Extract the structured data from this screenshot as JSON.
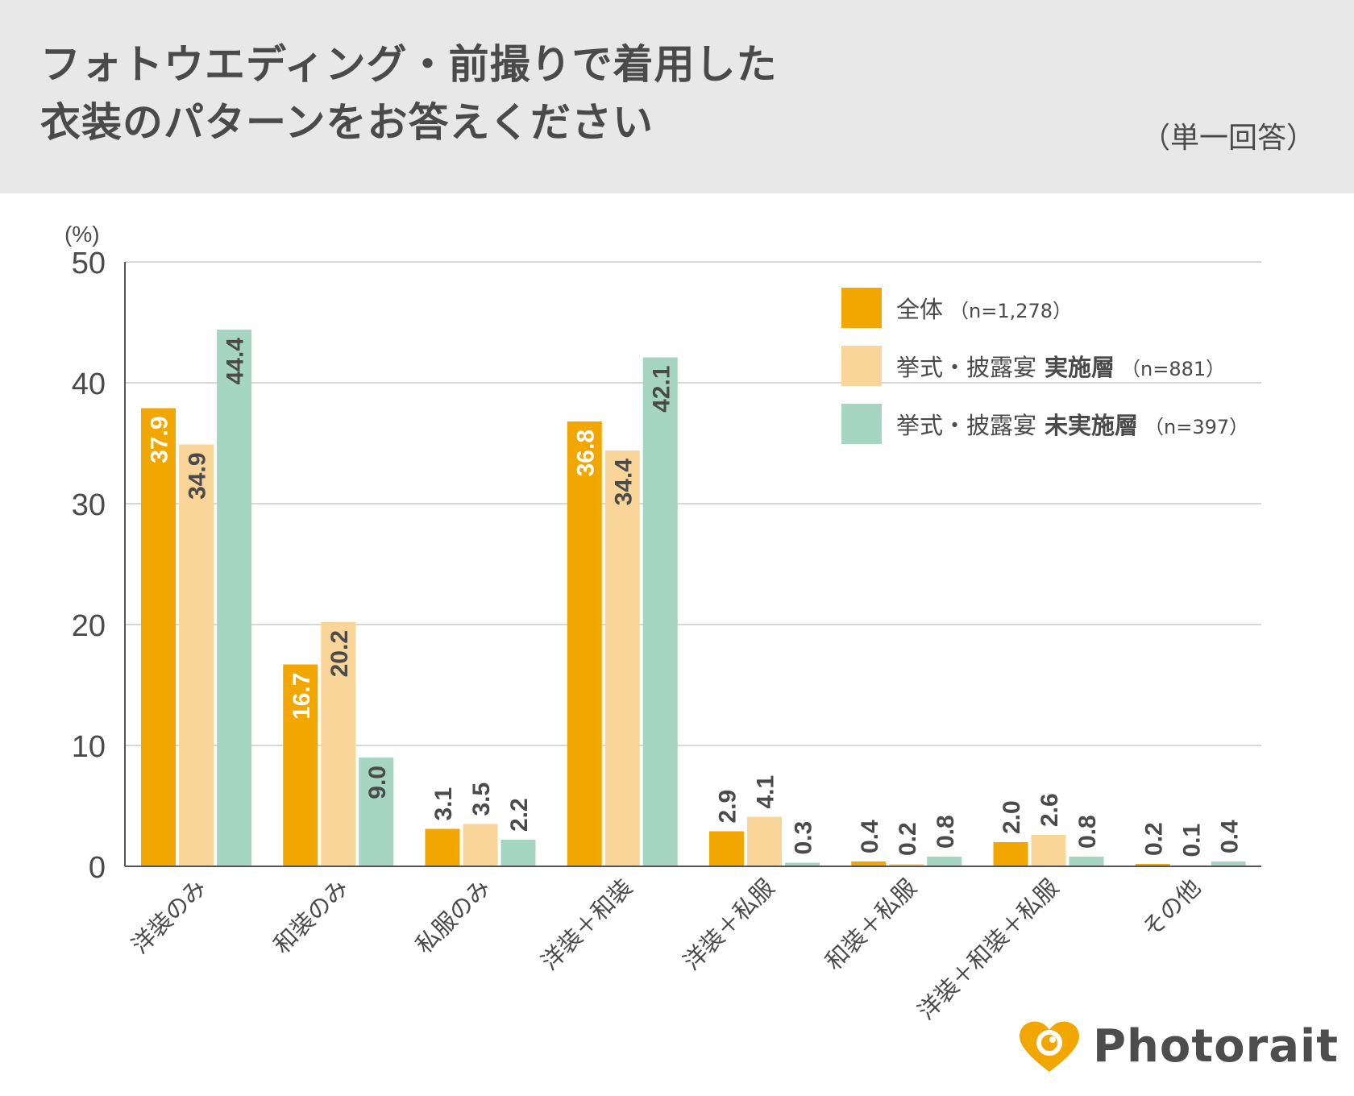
{
  "header": {
    "title_line1": "フォトウエディング・前撮りで着用した",
    "title_line2": "衣装のパターンをお答えください",
    "note": "（単一回答）"
  },
  "legend": [
    {
      "label": "全体",
      "bold": "",
      "n": "（n=1,278）",
      "color": "#f2a600"
    },
    {
      "label": "挙式・披露宴",
      "bold": "実施層",
      "n": "（n=881）",
      "color": "#fad59a"
    },
    {
      "label": "挙式・披露宴",
      "bold": "未実施層",
      "n": "（n=397）",
      "color": "#a6d5c4"
    }
  ],
  "logo": {
    "text": "Photorait",
    "icon": "heart-camera-icon",
    "color": "#f2a600"
  },
  "chart_data": {
    "type": "bar",
    "ylabel": "(%)",
    "ylim": [
      0,
      50
    ],
    "yticks": [
      0,
      10,
      20,
      30,
      40,
      50
    ],
    "grid": true,
    "categories": [
      "洋装のみ",
      "和装のみ",
      "私服のみ",
      "洋装＋和装",
      "洋装＋私服",
      "和装＋私服",
      "洋装＋和装＋私服",
      "その他"
    ],
    "series": [
      {
        "name": "全体（n=1,278）",
        "color": "#f2a600",
        "label_color": "#ffffff",
        "values": [
          37.9,
          16.7,
          3.1,
          36.8,
          2.9,
          0.4,
          2.0,
          0.2
        ],
        "labels": [
          "37.9",
          "16.7",
          "3.1",
          "36.8",
          "2.9",
          "0.4",
          "2.0",
          "0.2"
        ]
      },
      {
        "name": "挙式・披露宴 実施層（n=881）",
        "color": "#fad59a",
        "label_color": "#4a4a4a",
        "values": [
          34.9,
          20.2,
          3.5,
          34.4,
          4.1,
          0.2,
          2.6,
          0.1
        ],
        "labels": [
          "34.9",
          "20.2",
          "3.5",
          "34.4",
          "4.1",
          "0.2",
          "2.6",
          "0.1"
        ]
      },
      {
        "name": "挙式・披露宴 未実施層（n=397）",
        "color": "#a6d5c4",
        "label_color": "#4a4a4a",
        "values": [
          44.4,
          9.0,
          2.2,
          42.1,
          0.3,
          0.8,
          0.8,
          0.4
        ],
        "labels": [
          "44.4",
          "9.0",
          "2.2",
          "42.1",
          "0.3",
          "0.8",
          "0.8",
          "0.4"
        ]
      }
    ]
  }
}
